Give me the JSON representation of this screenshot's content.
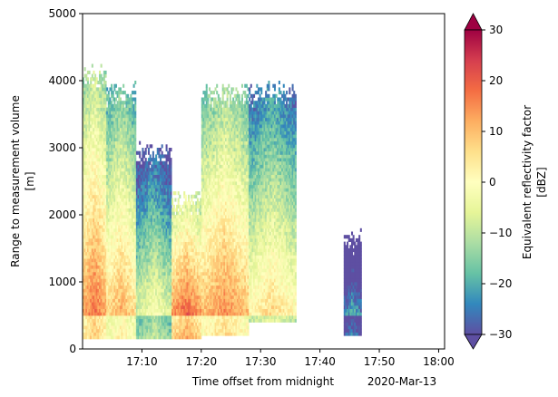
{
  "chart_data": {
    "type": "heatmap",
    "title": "",
    "xlabel": "Time offset from midnight",
    "xlabel_extra": "2020-Mar-13",
    "ylabel_line1": "Range to measurement volume",
    "ylabel_line2": "[m]",
    "x_ticks": [
      "17:10",
      "17:20",
      "17:30",
      "17:40",
      "17:50",
      "18:00"
    ],
    "x_tick_minutes": [
      10,
      20,
      30,
      40,
      50,
      60
    ],
    "xlim_minutes_after_17h": [
      0,
      61
    ],
    "y_ticks": [
      0,
      1000,
      2000,
      3000,
      4000,
      5000
    ],
    "ylim": [
      0,
      5000
    ],
    "colorbar": {
      "label_line1": "Equivalent reflectivity factor",
      "label_line2": "[dBZ]",
      "ticks": [
        -30,
        -20,
        -10,
        0,
        10,
        20,
        30
      ],
      "range": [
        -30,
        30
      ],
      "colormap": "Spectral_r",
      "extend": "both"
    },
    "echo_regions": [
      {
        "t_start": 0,
        "t_end": 4,
        "h_bottom": 150,
        "h_top": 4050,
        "core_dbz": 18
      },
      {
        "t_start": 4,
        "t_end": 9,
        "h_bottom": 150,
        "h_top": 3800,
        "core_dbz": 12
      },
      {
        "t_start": 9,
        "t_end": 15,
        "h_bottom": 150,
        "h_top": 2900,
        "core_dbz": 0
      },
      {
        "t_start": 15,
        "t_end": 20,
        "h_bottom": 150,
        "h_top": 2200,
        "core_dbz": 22
      },
      {
        "t_start": 20,
        "t_end": 28,
        "h_bottom": 200,
        "h_top": 3800,
        "core_dbz": 15
      },
      {
        "t_start": 28,
        "t_end": 36,
        "h_bottom": 400,
        "h_top": 3800,
        "core_dbz": 5
      },
      {
        "t_start": 44,
        "t_end": 47,
        "h_bottom": 200,
        "h_top": 1600,
        "core_dbz": -15
      }
    ]
  }
}
